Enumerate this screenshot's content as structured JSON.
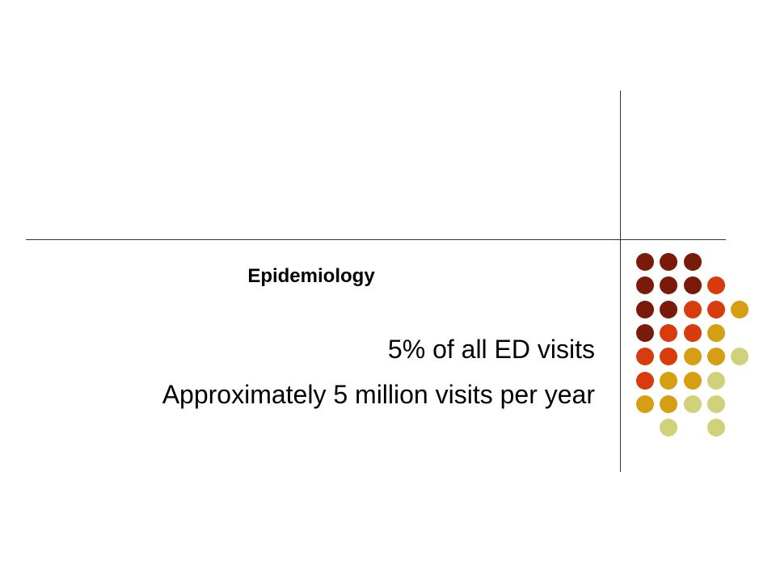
{
  "slide": {
    "title": "Epidemiology",
    "bullets": [
      "5% of all ED visits",
      "Approximately 5 million visits per year"
    ]
  },
  "colors": {
    "dark_red": "#7a1a0a",
    "orange_red": "#d83b0c",
    "gold": "#d69e12",
    "pale_olive": "#cfd278",
    "lines": "#333333"
  },
  "dot_grid": [
    [
      "dark_red",
      "dark_red",
      "dark_red",
      null,
      null
    ],
    [
      "dark_red",
      "dark_red",
      "dark_red",
      "orange_red",
      null
    ],
    [
      "dark_red",
      "dark_red",
      "orange_red",
      "orange_red",
      "gold"
    ],
    [
      "dark_red",
      "orange_red",
      "orange_red",
      "gold",
      null
    ],
    [
      "orange_red",
      "orange_red",
      "gold",
      "gold",
      "pale_olive"
    ],
    [
      "orange_red",
      "gold",
      "gold",
      "pale_olive",
      null
    ],
    [
      "gold",
      "gold",
      "pale_olive",
      "pale_olive",
      null
    ],
    [
      null,
      "pale_olive",
      null,
      "pale_olive",
      null
    ]
  ]
}
